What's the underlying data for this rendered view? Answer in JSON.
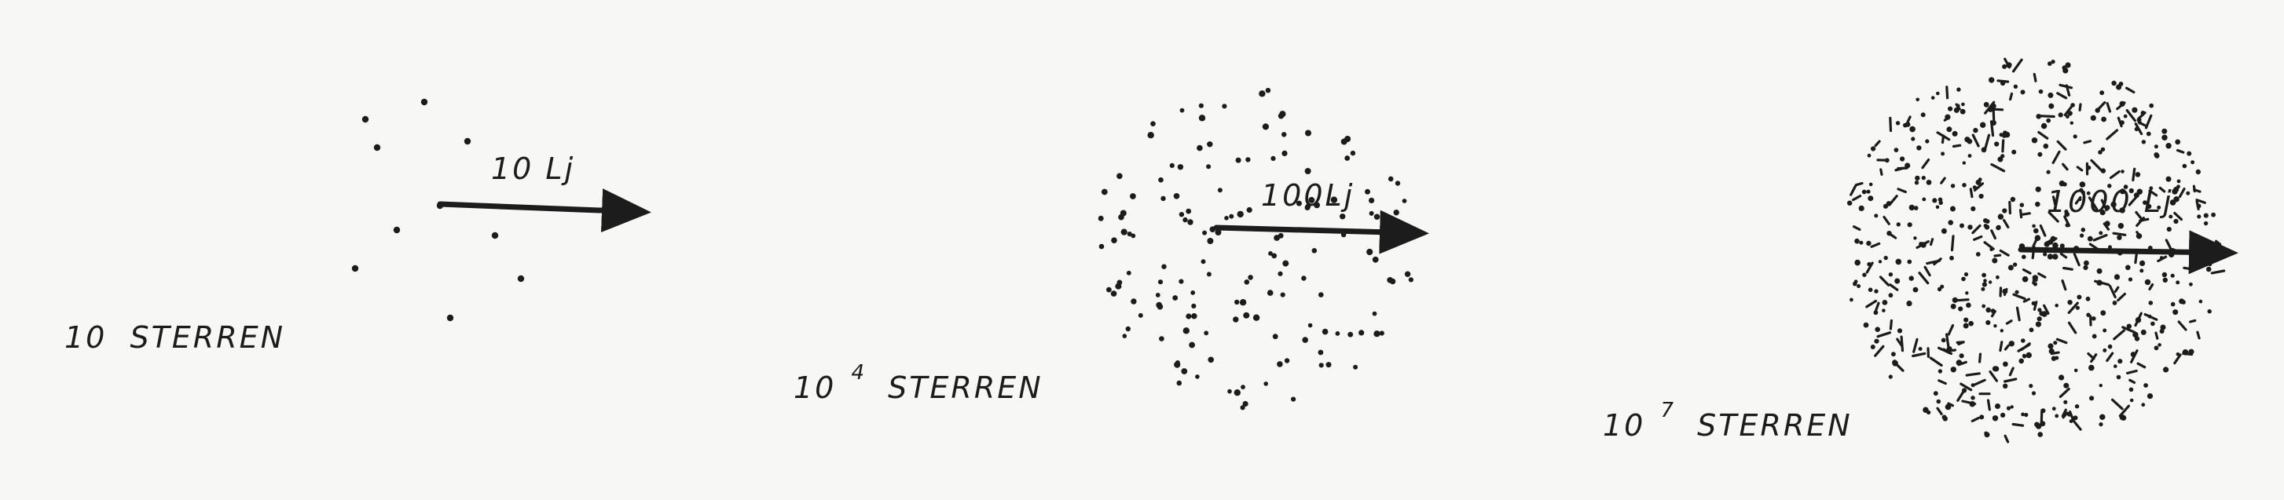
{
  "clusters": [
    {
      "id": "cluster-10",
      "count_base": "10",
      "count_exponent": "",
      "count_word": "STERREN",
      "radius_label": "10 Lj",
      "dot_count": 10
    },
    {
      "id": "cluster-10-4",
      "count_base": "10",
      "count_exponent": "4",
      "count_word": "STERREN",
      "radius_label": "100Lj",
      "dot_count": 150
    },
    {
      "id": "cluster-10-7",
      "count_base": "10",
      "count_exponent": "7",
      "count_word": "STERREN",
      "radius_label": "1000 Lj",
      "dot_count": 650
    }
  ],
  "colors": {
    "ink": "#1c1c1c",
    "paper": "#f7f7f5"
  }
}
